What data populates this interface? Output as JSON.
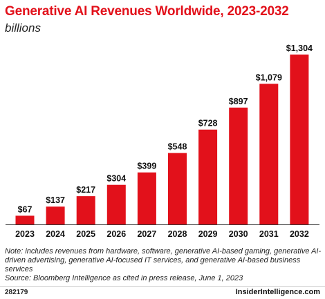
{
  "header": {
    "title": "Generative AI Revenues Worldwide, 2023-2032",
    "subtitle": "billions"
  },
  "chart_data": {
    "type": "bar",
    "title": "Generative AI Revenues Worldwide, 2023-2032",
    "subtitle": "billions",
    "categories": [
      "2023",
      "2024",
      "2025",
      "2026",
      "2027",
      "2028",
      "2029",
      "2030",
      "2031",
      "2032"
    ],
    "values": [
      67,
      137,
      217,
      304,
      399,
      548,
      728,
      897,
      1079,
      1304
    ],
    "value_labels": [
      "$67",
      "$137",
      "$217",
      "$304",
      "$399",
      "$548",
      "$728",
      "$897",
      "$1,079",
      "$1,304"
    ],
    "xlabel": "",
    "ylabel": "",
    "ylim": [
      0,
      1304
    ],
    "bar_color": "#e2111b",
    "grid": false,
    "legend": "none"
  },
  "footer": {
    "note": "Note: includes revenues from hardware, software, generative AI-based gaming, generative AI-driven advertising, generative AI-focused IT services, and generative AI-based business services",
    "source": "Source: Bloomberg Intelligence as cited in press release, June 1, 2023",
    "chart_id": "282179",
    "brand": "InsiderIntelligence.com"
  }
}
